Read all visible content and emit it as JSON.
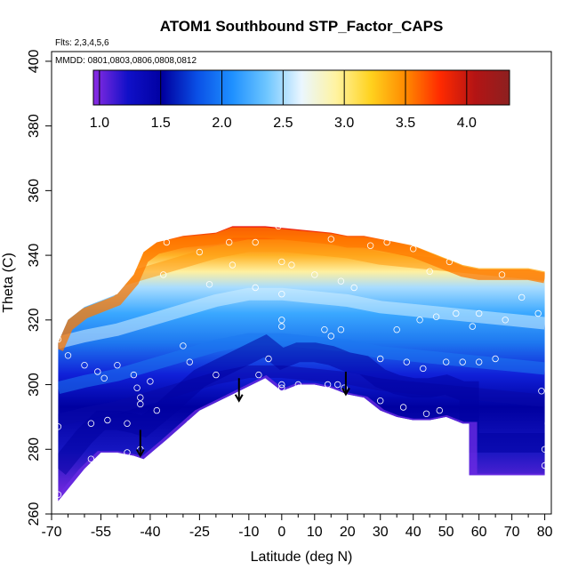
{
  "chart_data": {
    "type": "heatmap",
    "title": "ATOM1 Southbound STP_Factor_CAPS",
    "flights_label": "Flts: 2,3,4,5,6",
    "mmdd_label": "MMDD: 0801,0803,0806,0808,0812",
    "xlabel": "Latitude (deg N)",
    "ylabel": "Theta (C)",
    "xlim": [
      -70,
      82
    ],
    "ylim": [
      260,
      403
    ],
    "x_ticks": [
      -70,
      -55,
      -40,
      -25,
      -10,
      0,
      10,
      20,
      30,
      40,
      50,
      60,
      70,
      80
    ],
    "x_tick_labels": [
      "-70",
      "-55",
      "-40",
      "-25",
      "-10",
      "0",
      "10",
      "20",
      "30",
      "40",
      "50",
      "60",
      "70",
      "80"
    ],
    "x_minor_ticks": [
      -65,
      -60,
      -50,
      -45,
      -35,
      -30,
      -20,
      -15,
      -5,
      5,
      15,
      25,
      35,
      45,
      55,
      65,
      75
    ],
    "y_ticks": [
      260,
      280,
      300,
      320,
      340,
      360,
      380,
      400
    ],
    "y_tick_labels": [
      "260",
      "280",
      "300",
      "320",
      "340",
      "360",
      "380",
      "400"
    ],
    "colorbar": {
      "min": 0.95,
      "max": 4.35,
      "ticks": [
        1.0,
        1.5,
        2.0,
        2.5,
        3.0,
        3.5,
        4.0
      ],
      "tick_labels": [
        "1.0",
        "1.5",
        "2.0",
        "2.5",
        "3.0",
        "3.5",
        "4.0"
      ],
      "colors": [
        "#8a2be2",
        "#1010c8",
        "#0000a0",
        "#0a50e6",
        "#1e90ff",
        "#6ec6ff",
        "#eaf6ff",
        "#fff3a0",
        "#ffd21e",
        "#ff8a00",
        "#ff2a00",
        "#b41414",
        "#8c2020"
      ]
    },
    "domain": {
      "upper": [
        [
          -68,
          313
        ],
        [
          -65,
          320
        ],
        [
          -60,
          324
        ],
        [
          -55,
          326
        ],
        [
          -50,
          328
        ],
        [
          -45,
          334
        ],
        [
          -42,
          341
        ],
        [
          -38,
          344
        ],
        [
          -30,
          346
        ],
        [
          -20,
          347
        ],
        [
          -15,
          349
        ],
        [
          -5,
          349
        ],
        [
          5,
          348
        ],
        [
          15,
          347
        ],
        [
          20,
          346
        ],
        [
          25,
          346
        ],
        [
          35,
          344
        ],
        [
          40,
          343
        ],
        [
          45,
          341
        ],
        [
          50,
          339
        ],
        [
          55,
          337
        ],
        [
          60,
          336
        ],
        [
          75,
          336
        ],
        [
          80,
          335
        ]
      ],
      "lower": [
        [
          -68,
          264
        ],
        [
          -60,
          274
        ],
        [
          -55,
          279
        ],
        [
          -50,
          279
        ],
        [
          -45,
          278
        ],
        [
          -42,
          277
        ],
        [
          -35,
          283
        ],
        [
          -25,
          292
        ],
        [
          -15,
          297
        ],
        [
          -5,
          302
        ],
        [
          0,
          298
        ],
        [
          5,
          300
        ],
        [
          10,
          300
        ],
        [
          15,
          299
        ],
        [
          20,
          297
        ],
        [
          25,
          296
        ],
        [
          30,
          292
        ],
        [
          35,
          290
        ],
        [
          40,
          289
        ],
        [
          45,
          289
        ],
        [
          50,
          290
        ],
        [
          55,
          288
        ],
        [
          57,
          288
        ],
        [
          57,
          272
        ],
        [
          80,
          272
        ]
      ]
    },
    "contours": {
      "level_thetas": [
        301,
        311,
        325,
        340
      ],
      "shape_offsets": [
        [
          -68,
          -12
        ],
        [
          -60,
          -10
        ],
        [
          -50,
          -8
        ],
        [
          -40,
          -5
        ],
        [
          -30,
          -2
        ],
        [
          -20,
          1
        ],
        [
          -10,
          3
        ],
        [
          0,
          3
        ],
        [
          10,
          2
        ],
        [
          20,
          1
        ],
        [
          30,
          -1
        ],
        [
          40,
          -2
        ],
        [
          50,
          -3
        ],
        [
          60,
          -4
        ],
        [
          70,
          -5
        ],
        [
          80,
          -6
        ]
      ]
    },
    "arrows": [
      {
        "lat": -43,
        "theta_start": 286,
        "theta_end": 278
      },
      {
        "lat": -13,
        "theta_start": 302,
        "theta_end": 295
      },
      {
        "lat": 19.5,
        "theta_start": 304,
        "theta_end": 297
      }
    ],
    "observations": [
      [
        -68,
        314
      ],
      [
        -68,
        287
      ],
      [
        -68,
        266
      ],
      [
        -65,
        309
      ],
      [
        -60,
        306
      ],
      [
        -58,
        288
      ],
      [
        -58,
        277
      ],
      [
        -56,
        304
      ],
      [
        -54,
        302
      ],
      [
        -53,
        289
      ],
      [
        -50,
        306
      ],
      [
        -47,
        288
      ],
      [
        -47,
        279
      ],
      [
        -45,
        303
      ],
      [
        -44,
        299
      ],
      [
        -43,
        296
      ],
      [
        -43,
        294
      ],
      [
        -43,
        280
      ],
      [
        -40,
        301
      ],
      [
        -38,
        292
      ],
      [
        -36,
        334
      ],
      [
        -35,
        344
      ],
      [
        -30,
        312
      ],
      [
        -28,
        307
      ],
      [
        -28,
        288
      ],
      [
        -28,
        285
      ],
      [
        -25,
        341
      ],
      [
        -22,
        331
      ],
      [
        -20,
        303
      ],
      [
        -20,
        293
      ],
      [
        -16,
        344
      ],
      [
        -15,
        337
      ],
      [
        -8,
        344
      ],
      [
        -8,
        330
      ],
      [
        -7,
        303
      ],
      [
        -4,
        308
      ],
      [
        -1,
        349
      ],
      [
        0,
        338
      ],
      [
        0,
        328
      ],
      [
        0,
        320
      ],
      [
        0,
        318
      ],
      [
        0,
        300
      ],
      [
        0,
        299
      ],
      [
        3,
        337
      ],
      [
        5,
        300
      ],
      [
        10,
        334
      ],
      [
        13,
        317
      ],
      [
        14,
        300
      ],
      [
        15,
        345
      ],
      [
        15,
        315
      ],
      [
        17,
        300
      ],
      [
        18,
        332
      ],
      [
        18,
        317
      ],
      [
        19,
        299
      ],
      [
        22,
        330
      ],
      [
        27,
        343
      ],
      [
        30,
        308
      ],
      [
        30,
        295
      ],
      [
        32,
        344
      ],
      [
        35,
        317
      ],
      [
        37,
        293
      ],
      [
        38,
        307
      ],
      [
        40,
        342
      ],
      [
        42,
        320
      ],
      [
        43,
        305
      ],
      [
        44,
        291
      ],
      [
        45,
        335
      ],
      [
        47,
        321
      ],
      [
        48,
        292
      ],
      [
        50,
        307
      ],
      [
        51,
        338
      ],
      [
        53,
        322
      ],
      [
        55,
        307
      ],
      [
        58,
        318
      ],
      [
        60,
        322
      ],
      [
        60,
        307
      ],
      [
        65,
        308
      ],
      [
        67,
        334
      ],
      [
        68,
        320
      ],
      [
        73,
        327
      ],
      [
        77,
        337
      ],
      [
        78,
        322
      ],
      [
        79,
        298
      ],
      [
        80,
        280
      ],
      [
        80,
        275
      ],
      [
        81,
        288
      ],
      [
        81,
        276
      ]
    ]
  }
}
